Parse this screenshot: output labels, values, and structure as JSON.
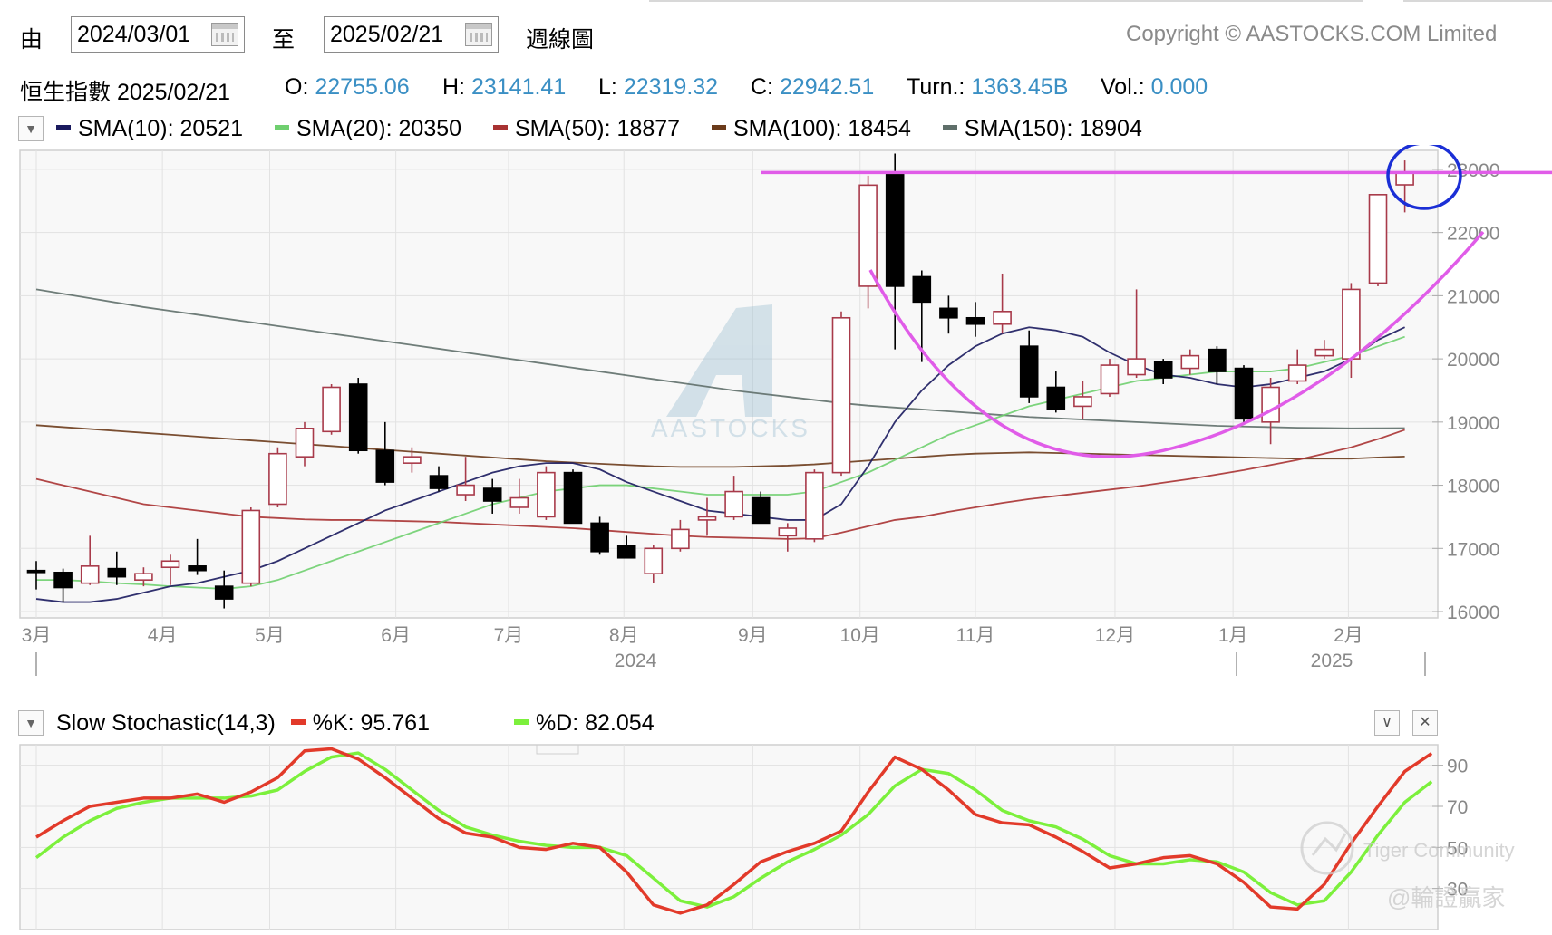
{
  "header": {
    "from_label": "由",
    "from_date": "2024/03/01",
    "to_label": "至",
    "to_date": "2025/02/21",
    "period": "週線圖",
    "copyright": "Copyright © AASTOCKS.COM Limited"
  },
  "quote": {
    "name_date": "恒生指數 2025/02/21",
    "open_label": "O:",
    "open": "22755.06",
    "high_label": "H:",
    "high": "23141.41",
    "low_label": "L:",
    "low": "22319.32",
    "close_label": "C:",
    "close": "22942.51",
    "turn_label": "Turn.:",
    "turn": "1363.45B",
    "vol_label": "Vol.:",
    "vol": "0.000"
  },
  "sma_legend": [
    {
      "label": "SMA(10): 20521",
      "color": "#1a1a5e"
    },
    {
      "label": "SMA(20): 20350",
      "color": "#6fcf6f"
    },
    {
      "label": "SMA(50): 18877",
      "color": "#a83232"
    },
    {
      "label": "SMA(100): 18454",
      "color": "#6b3b1b"
    },
    {
      "label": "SMA(150): 18904",
      "color": "#5f6f6a"
    }
  ],
  "stoch_legend": {
    "name": "Slow Stochastic(14,3)",
    "k_label": "%K: 95.761",
    "k_color": "#e23a2a",
    "d_label": "%D: 82.054",
    "d_color": "#7cf03c"
  },
  "watermarks": {
    "center": "AASTOCKS",
    "community": "Tiger Community",
    "handle": "@輪證贏家"
  },
  "colors": {
    "up_body": "#ffffff",
    "up_stroke": "#a83a4a",
    "down_body": "#000000",
    "annotation": "#e05ce8",
    "circle": "#1b2fd6"
  },
  "chart_data": [
    {
      "type": "candlestick",
      "ylim": [
        15900,
        23300
      ],
      "yticks": [
        16000,
        17000,
        18000,
        19000,
        20000,
        21000,
        22000,
        23000
      ],
      "x_month_labels": [
        "3月",
        "4月",
        "5月",
        "6月",
        "7月",
        "8月",
        "9月",
        "10月",
        "11月",
        "12月",
        "1月",
        "2月"
      ],
      "x_year_labels": [
        "2024",
        "2025"
      ],
      "candles": [
        {
          "o": 16650,
          "h": 16800,
          "l": 16350,
          "c": 16620
        },
        {
          "o": 16620,
          "h": 16680,
          "l": 16150,
          "c": 16380
        },
        {
          "o": 16450,
          "h": 17200,
          "l": 16420,
          "c": 16720
        },
        {
          "o": 16680,
          "h": 16950,
          "l": 16420,
          "c": 16550
        },
        {
          "o": 16500,
          "h": 16700,
          "l": 16400,
          "c": 16600
        },
        {
          "o": 16700,
          "h": 16900,
          "l": 16420,
          "c": 16800
        },
        {
          "o": 16720,
          "h": 17150,
          "l": 16580,
          "c": 16650
        },
        {
          "o": 16400,
          "h": 16650,
          "l": 16050,
          "c": 16200
        },
        {
          "o": 16450,
          "h": 17650,
          "l": 16400,
          "c": 17600
        },
        {
          "o": 17700,
          "h": 18600,
          "l": 17650,
          "c": 18500
        },
        {
          "o": 18450,
          "h": 19000,
          "l": 18300,
          "c": 18900
        },
        {
          "o": 18850,
          "h": 19600,
          "l": 18800,
          "c": 19550
        },
        {
          "o": 19600,
          "h": 19700,
          "l": 18500,
          "c": 18550
        },
        {
          "o": 18550,
          "h": 19000,
          "l": 18000,
          "c": 18050
        },
        {
          "o": 18350,
          "h": 18600,
          "l": 18200,
          "c": 18450
        },
        {
          "o": 18150,
          "h": 18300,
          "l": 17900,
          "c": 17950
        },
        {
          "o": 17850,
          "h": 18450,
          "l": 17750,
          "c": 18000
        },
        {
          "o": 17950,
          "h": 18100,
          "l": 17550,
          "c": 17750
        },
        {
          "o": 17650,
          "h": 18100,
          "l": 17550,
          "c": 17800
        },
        {
          "o": 17500,
          "h": 18300,
          "l": 17450,
          "c": 18200
        },
        {
          "o": 18200,
          "h": 18250,
          "l": 17400,
          "c": 17400
        },
        {
          "o": 17400,
          "h": 17500,
          "l": 16900,
          "c": 16950
        },
        {
          "o": 17050,
          "h": 17200,
          "l": 16850,
          "c": 16850
        },
        {
          "o": 16600,
          "h": 17050,
          "l": 16450,
          "c": 17000
        },
        {
          "o": 17000,
          "h": 17450,
          "l": 16950,
          "c": 17300
        },
        {
          "o": 17450,
          "h": 17800,
          "l": 17200,
          "c": 17500
        },
        {
          "o": 17500,
          "h": 18150,
          "l": 17450,
          "c": 17900
        },
        {
          "o": 17800,
          "h": 17900,
          "l": 17400,
          "c": 17400
        },
        {
          "o": 17200,
          "h": 17400,
          "l": 16950,
          "c": 17320
        },
        {
          "o": 17150,
          "h": 18250,
          "l": 17100,
          "c": 18200
        },
        {
          "o": 18200,
          "h": 20750,
          "l": 18150,
          "c": 20650
        },
        {
          "o": 21150,
          "h": 22900,
          "l": 20800,
          "c": 22750
        },
        {
          "o": 22950,
          "h": 23250,
          "l": 20150,
          "c": 21150
        },
        {
          "o": 21300,
          "h": 21400,
          "l": 19950,
          "c": 20900
        },
        {
          "o": 20800,
          "h": 21000,
          "l": 20400,
          "c": 20650
        },
        {
          "o": 20650,
          "h": 20900,
          "l": 20350,
          "c": 20550
        },
        {
          "o": 20550,
          "h": 21350,
          "l": 20400,
          "c": 20750
        },
        {
          "o": 20200,
          "h": 20450,
          "l": 19300,
          "c": 19400
        },
        {
          "o": 19550,
          "h": 19800,
          "l": 19150,
          "c": 19200
        },
        {
          "o": 19250,
          "h": 19650,
          "l": 19050,
          "c": 19400
        },
        {
          "o": 19450,
          "h": 20000,
          "l": 19400,
          "c": 19900
        },
        {
          "o": 19750,
          "h": 21100,
          "l": 19700,
          "c": 20000
        },
        {
          "o": 19950,
          "h": 20000,
          "l": 19600,
          "c": 19700
        },
        {
          "o": 19850,
          "h": 20150,
          "l": 19750,
          "c": 20050
        },
        {
          "o": 20150,
          "h": 20200,
          "l": 19600,
          "c": 19800
        },
        {
          "o": 19850,
          "h": 19900,
          "l": 19000,
          "c": 19050
        },
        {
          "o": 19000,
          "h": 19700,
          "l": 18650,
          "c": 19550
        },
        {
          "o": 19650,
          "h": 20150,
          "l": 19600,
          "c": 19900
        },
        {
          "o": 20050,
          "h": 20300,
          "l": 20000,
          "c": 20150
        },
        {
          "o": 20000,
          "h": 21200,
          "l": 19700,
          "c": 21100
        },
        {
          "o": 21200,
          "h": 22550,
          "l": 21150,
          "c": 22600
        },
        {
          "o": 22755.06,
          "h": 23141.41,
          "l": 22319.32,
          "c": 22942.51
        }
      ],
      "sma10": [
        16200,
        16150,
        16150,
        16200,
        16300,
        16400,
        16450,
        16550,
        16650,
        16800,
        17000,
        17200,
        17400,
        17600,
        17750,
        17900,
        18050,
        18200,
        18300,
        18350,
        18350,
        18250,
        18050,
        17900,
        17750,
        17600,
        17550,
        17500,
        17450,
        17450,
        17700,
        18300,
        19000,
        19500,
        19900,
        20200,
        20400,
        20500,
        20450,
        20350,
        20100,
        19900,
        19750,
        19700,
        19600,
        19550,
        19600,
        19700,
        19800,
        20000,
        20300,
        20500
      ],
      "sma20": [
        16500,
        16500,
        16480,
        16450,
        16430,
        16400,
        16380,
        16360,
        16400,
        16500,
        16650,
        16800,
        16950,
        17100,
        17250,
        17400,
        17550,
        17700,
        17800,
        17900,
        17950,
        18000,
        18000,
        17950,
        17900,
        17850,
        17850,
        17850,
        17850,
        17900,
        18050,
        18200,
        18400,
        18600,
        18800,
        18950,
        19100,
        19250,
        19350,
        19450,
        19550,
        19650,
        19700,
        19750,
        19800,
        19800,
        19800,
        19850,
        19950,
        20050,
        20200,
        20350
      ],
      "sma50": [
        18100,
        18000,
        17900,
        17800,
        17700,
        17650,
        17600,
        17550,
        17500,
        17480,
        17460,
        17450,
        17450,
        17440,
        17430,
        17420,
        17400,
        17380,
        17360,
        17340,
        17320,
        17290,
        17260,
        17230,
        17200,
        17180,
        17170,
        17160,
        17150,
        17160,
        17250,
        17350,
        17450,
        17500,
        17580,
        17650,
        17720,
        17780,
        17830,
        17880,
        17930,
        17980,
        18040,
        18100,
        18170,
        18240,
        18320,
        18400,
        18500,
        18600,
        18730,
        18877
      ],
      "sma100": [
        18950,
        18920,
        18890,
        18860,
        18830,
        18800,
        18770,
        18740,
        18710,
        18680,
        18650,
        18620,
        18590,
        18560,
        18530,
        18500,
        18470,
        18440,
        18410,
        18380,
        18360,
        18340,
        18320,
        18300,
        18290,
        18290,
        18290,
        18300,
        18310,
        18330,
        18360,
        18390,
        18420,
        18450,
        18480,
        18500,
        18510,
        18520,
        18510,
        18500,
        18490,
        18480,
        18470,
        18460,
        18450,
        18440,
        18430,
        18420,
        18420,
        18420,
        18440,
        18454
      ],
      "sma150": [
        21100,
        21030,
        20960,
        20890,
        20820,
        20760,
        20700,
        20640,
        20580,
        20520,
        20460,
        20400,
        20340,
        20280,
        20220,
        20160,
        20100,
        20040,
        19980,
        19920,
        19860,
        19800,
        19740,
        19680,
        19620,
        19560,
        19500,
        19450,
        19400,
        19350,
        19300,
        19260,
        19230,
        19200,
        19170,
        19140,
        19110,
        19080,
        19060,
        19040,
        19020,
        19000,
        18980,
        18960,
        18940,
        18930,
        18920,
        18910,
        18905,
        18900,
        18902,
        18904
      ]
    },
    {
      "type": "line",
      "title": "Slow Stochastic(14,3)",
      "ylim": [
        10,
        100
      ],
      "yticks": [
        30,
        50,
        70,
        90
      ],
      "series": [
        {
          "name": "%K",
          "values": [
            55,
            63,
            70,
            72,
            74,
            74,
            76,
            72,
            77,
            84,
            97,
            98,
            93,
            84,
            74,
            64,
            57,
            55,
            50,
            49,
            52,
            50,
            38,
            22,
            18,
            22,
            32,
            43,
            48,
            52,
            58,
            77,
            94,
            88,
            78,
            66,
            62,
            61,
            55,
            48,
            40,
            42,
            45,
            46,
            42,
            33,
            21,
            20,
            32,
            52,
            70,
            87,
            95.761
          ]
        },
        {
          "name": "%D",
          "values": [
            45,
            55,
            63,
            69,
            72,
            74,
            74,
            74,
            75,
            78,
            87,
            94,
            96,
            88,
            78,
            68,
            60,
            56,
            53,
            51,
            50,
            50,
            46,
            35,
            24,
            21,
            26,
            35,
            43,
            49,
            56,
            66,
            80,
            88,
            86,
            78,
            68,
            63,
            60,
            54,
            46,
            42,
            42,
            44,
            43,
            38,
            28,
            22,
            24,
            38,
            56,
            72,
            82.054
          ]
        }
      ]
    }
  ]
}
